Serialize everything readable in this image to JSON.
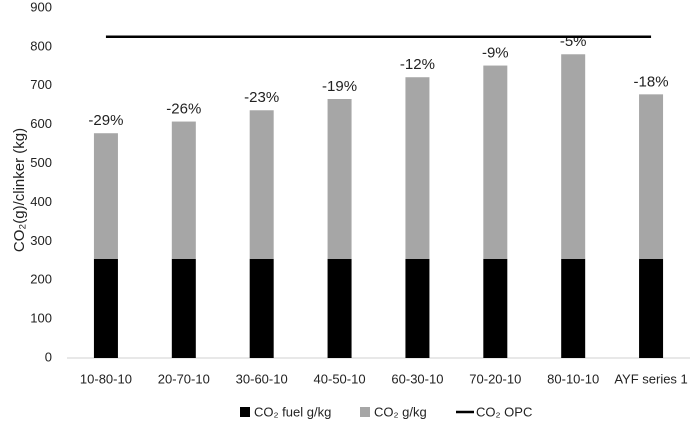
{
  "chart_data": {
    "type": "stacked_bar",
    "y_label": "CO₂(g)/clinker (kg)",
    "categories": [
      "10-80-10",
      "20-70-10",
      "30-60-10",
      "40-50-10",
      "60-30-10",
      "70-20-10",
      "80-10-10",
      "AYF series 1"
    ],
    "series": [
      {
        "name": "CO₂ fuel g/kg",
        "color": "#000000",
        "values": [
          255,
          255,
          255,
          255,
          255,
          255,
          255,
          255
        ]
      },
      {
        "name": "CO₂ g/kg",
        "color": "#a6a6a6",
        "values": [
          323,
          353,
          382,
          411,
          467,
          497,
          526,
          423
        ]
      }
    ],
    "annotations": [
      "-29%",
      "-26%",
      "-23%",
      "-19%",
      "-12%",
      "-9%",
      "-5%",
      "-18%"
    ],
    "reference_lines": [
      {
        "name": "CO₂ OPC",
        "value": 826,
        "color": "#000000"
      }
    ],
    "ylim": [
      0,
      900
    ],
    "yticks": [
      0,
      100,
      200,
      300,
      400,
      500,
      600,
      700,
      800,
      900
    ],
    "grid": false,
    "legend": "bottom"
  }
}
